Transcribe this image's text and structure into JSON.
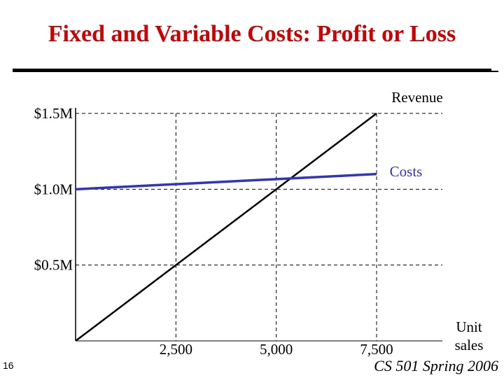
{
  "slide": {
    "title": "Fixed and Variable Costs: Profit or Loss",
    "page_number": "16",
    "footer": "CS 501 Spring 2006"
  },
  "chart_data": {
    "type": "line",
    "title": "Fixed and Variable Costs: Profit or Loss",
    "xlabel": "Unit sales",
    "ylabel": "",
    "x_ticks": [
      2500,
      5000,
      7500
    ],
    "x_tick_labels": [
      "2,500",
      "5,000",
      "7,500"
    ],
    "y_ticks": [
      0.5,
      1.0,
      1.5
    ],
    "y_tick_labels": [
      "$0.5M",
      "$1.0M",
      "$1.5M"
    ],
    "xlim": [
      0,
      7500
    ],
    "ylim": [
      0,
      1.5
    ],
    "grid": true,
    "series": [
      {
        "name": "Revenue",
        "color": "#000000",
        "x": [
          0,
          7500
        ],
        "y": [
          0,
          1.5
        ]
      },
      {
        "name": "Costs",
        "color": "#3333bb",
        "x": [
          0,
          7500
        ],
        "y": [
          1.0,
          1.1
        ]
      }
    ]
  }
}
